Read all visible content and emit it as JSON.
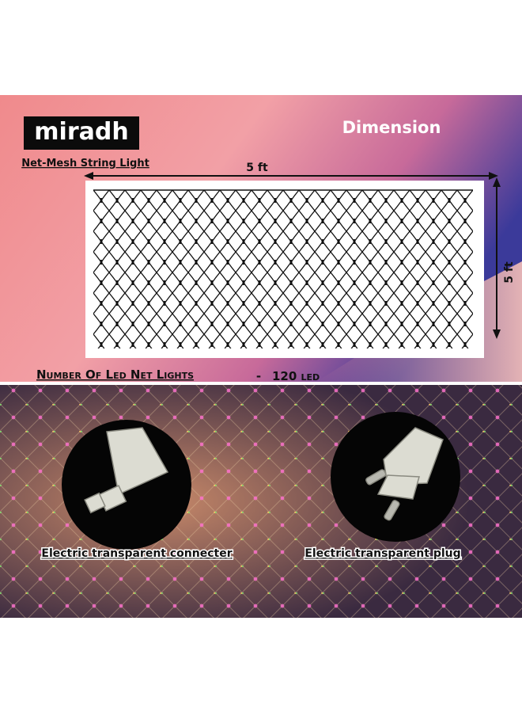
{
  "brand": "miradh",
  "product": "Net-Mesh String Light",
  "section_title": "Dimension",
  "dimensions": {
    "width": "5 ft",
    "height": "5 ft"
  },
  "led_count": {
    "label": "Number Of Led Net Lights",
    "separator": "-",
    "value": "120 led"
  },
  "accessories": [
    {
      "label": "Electric transparent connecter"
    },
    {
      "label": "Electric transparent plug"
    }
  ]
}
